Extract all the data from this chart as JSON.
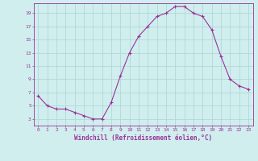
{
  "x": [
    0,
    1,
    2,
    3,
    4,
    5,
    6,
    7,
    8,
    9,
    10,
    11,
    12,
    13,
    14,
    15,
    16,
    17,
    18,
    19,
    20,
    21,
    22,
    23
  ],
  "y": [
    6.5,
    5.0,
    4.5,
    4.5,
    4.0,
    3.5,
    3.0,
    3.0,
    5.5,
    9.5,
    13.0,
    15.5,
    17.0,
    18.5,
    19.0,
    20.0,
    20.0,
    19.0,
    18.5,
    16.5,
    12.5,
    9.0,
    8.0,
    7.5
  ],
  "line_color": "#993399",
  "marker": "+",
  "bg_color": "#d0eeee",
  "grid_color": "#b0d8d8",
  "xlabel": "Windchill (Refroidissement éolien,°C)",
  "xlabel_color": "#993399",
  "tick_color": "#993399",
  "xlim": [
    -0.5,
    23.5
  ],
  "ylim": [
    2,
    20.5
  ],
  "yticks": [
    3,
    5,
    7,
    9,
    11,
    13,
    15,
    17,
    19
  ],
  "axis_color": "#993399",
  "figsize": [
    3.2,
    2.0
  ],
  "dpi": 100
}
